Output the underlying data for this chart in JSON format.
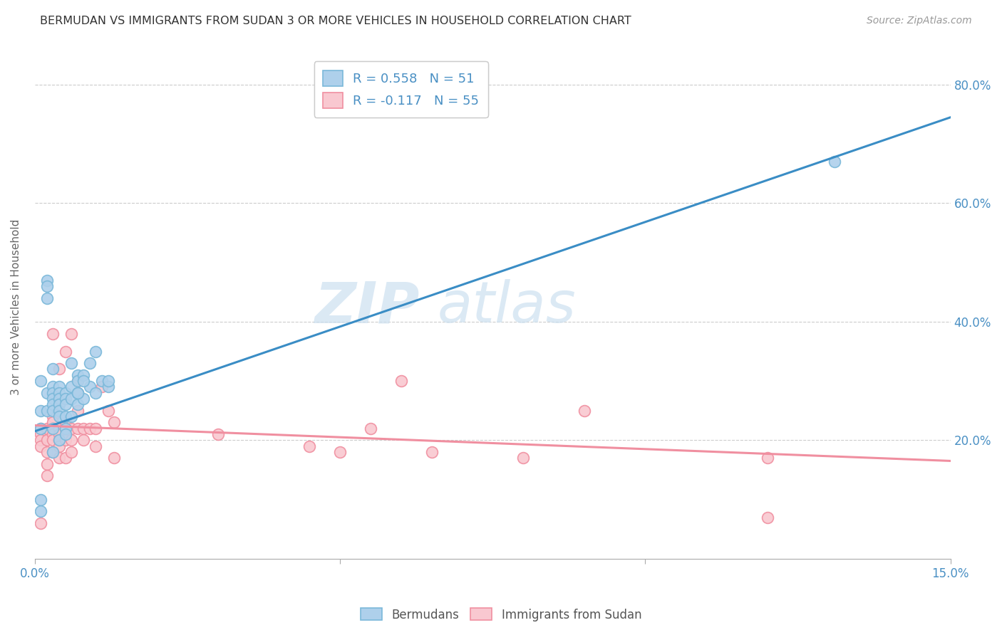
{
  "title": "BERMUDAN VS IMMIGRANTS FROM SUDAN 3 OR MORE VEHICLES IN HOUSEHOLD CORRELATION CHART",
  "source": "Source: ZipAtlas.com",
  "ylabel": "3 or more Vehicles in Household",
  "xlim": [
    0.0,
    0.15
  ],
  "ylim": [
    0.0,
    0.85
  ],
  "blue_line_x0": 0.0,
  "blue_line_y0": 0.215,
  "blue_line_x1": 0.15,
  "blue_line_y1": 0.745,
  "pink_line_x0": 0.0,
  "pink_line_y0": 0.225,
  "pink_line_x1": 0.15,
  "pink_line_y1": 0.165,
  "blue_color": "#7ab8d9",
  "blue_fill": "#aed0eb",
  "pink_color": "#f08fa0",
  "pink_fill": "#f9c8d0",
  "blue_line_color": "#3a8dc5",
  "pink_line_color": "#f08fa0",
  "legend_label_blue": "R = 0.558   N = 51",
  "legend_label_pink": "R = -0.117   N = 55",
  "bottom_legend_blue": "Bermudans",
  "bottom_legend_pink": "Immigrants from Sudan",
  "watermark_zip": "ZIP",
  "watermark_atlas": "atlas",
  "grid_color": "#cccccc",
  "background_color": "#ffffff",
  "title_color": "#333333",
  "axis_label_color": "#666666",
  "tick_color": "#4a90c4",
  "blue_x": [
    0.001,
    0.001,
    0.001,
    0.001,
    0.002,
    0.002,
    0.002,
    0.002,
    0.002,
    0.003,
    0.003,
    0.003,
    0.003,
    0.003,
    0.003,
    0.003,
    0.004,
    0.004,
    0.004,
    0.004,
    0.004,
    0.004,
    0.005,
    0.005,
    0.005,
    0.005,
    0.005,
    0.006,
    0.006,
    0.006,
    0.007,
    0.007,
    0.007,
    0.007,
    0.008,
    0.008,
    0.009,
    0.009,
    0.01,
    0.011,
    0.012,
    0.001,
    0.003,
    0.004,
    0.005,
    0.006,
    0.007,
    0.008,
    0.01,
    0.012,
    0.131
  ],
  "blue_y": [
    0.3,
    0.25,
    0.22,
    0.1,
    0.47,
    0.46,
    0.44,
    0.28,
    0.25,
    0.32,
    0.29,
    0.28,
    0.27,
    0.26,
    0.25,
    0.22,
    0.29,
    0.28,
    0.27,
    0.26,
    0.25,
    0.24,
    0.28,
    0.27,
    0.26,
    0.24,
    0.22,
    0.33,
    0.29,
    0.27,
    0.31,
    0.3,
    0.28,
    0.26,
    0.31,
    0.27,
    0.33,
    0.29,
    0.35,
    0.3,
    0.29,
    0.08,
    0.18,
    0.2,
    0.21,
    0.24,
    0.28,
    0.3,
    0.28,
    0.3,
    0.67
  ],
  "pink_x": [
    0.001,
    0.001,
    0.001,
    0.001,
    0.001,
    0.002,
    0.002,
    0.002,
    0.002,
    0.002,
    0.003,
    0.003,
    0.003,
    0.003,
    0.003,
    0.003,
    0.004,
    0.004,
    0.004,
    0.004,
    0.004,
    0.005,
    0.005,
    0.005,
    0.005,
    0.006,
    0.006,
    0.006,
    0.007,
    0.007,
    0.007,
    0.008,
    0.008,
    0.009,
    0.01,
    0.01,
    0.011,
    0.012,
    0.013,
    0.013,
    0.003,
    0.004,
    0.005,
    0.006,
    0.007,
    0.03,
    0.045,
    0.05,
    0.055,
    0.06,
    0.065,
    0.08,
    0.09,
    0.12,
    0.12
  ],
  "pink_y": [
    0.22,
    0.21,
    0.2,
    0.19,
    0.06,
    0.22,
    0.2,
    0.18,
    0.16,
    0.14,
    0.24,
    0.23,
    0.22,
    0.21,
    0.2,
    0.18,
    0.22,
    0.21,
    0.2,
    0.19,
    0.17,
    0.23,
    0.22,
    0.2,
    0.17,
    0.22,
    0.2,
    0.18,
    0.28,
    0.25,
    0.22,
    0.22,
    0.2,
    0.22,
    0.22,
    0.19,
    0.29,
    0.25,
    0.23,
    0.17,
    0.38,
    0.32,
    0.35,
    0.38,
    0.3,
    0.21,
    0.19,
    0.18,
    0.22,
    0.3,
    0.18,
    0.17,
    0.25,
    0.17,
    0.07
  ]
}
